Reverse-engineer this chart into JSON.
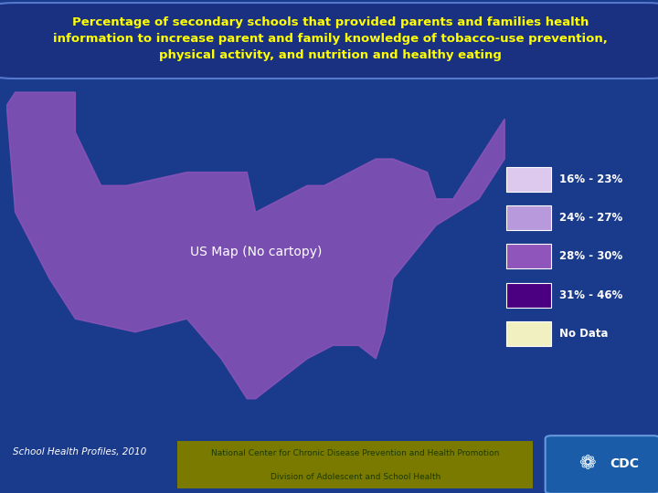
{
  "title": "Percentage of secondary schools that provided parents and families health\ninformation to increase parent and family knowledge of tobacco-use prevention,\nphysical activity, and nutrition and healthy eating",
  "title_color": "#FFFF00",
  "background_color": "#1a3a8c",
  "title_box_color": "#1a3080",
  "title_box_edge": "#5577cc",
  "legend_items": [
    {
      "label": "16% - 23%",
      "color": "#ddc8ee"
    },
    {
      "label": "24% - 27%",
      "color": "#b899dc"
    },
    {
      "label": "28% - 30%",
      "color": "#9055bb"
    },
    {
      "label": "31% - 46%",
      "color": "#4a0080"
    },
    {
      "label": "No Data",
      "color": "#f0f0c0"
    }
  ],
  "footer_left": "School Health Profiles, 2010",
  "footer_center1": "National Center for Chronic Disease Prevention and Health Promotion",
  "footer_center2": "Division of Adolescent and School Health",
  "footer_bg": "#7a7a00",
  "cdc_bg": "#1a5ca8",
  "state_colors": {
    "Alabama": "#9055bb",
    "Alaska": "#b899dc",
    "Arizona": "#b899dc",
    "Arkansas": "#4a0080",
    "California": "#b899dc",
    "Colorado": "#4a0080",
    "Connecticut": "#9055bb",
    "Delaware": "#9055bb",
    "Florida": "#b899dc",
    "Georgia": "#9055bb",
    "Hawaii": "#b899dc",
    "Idaho": "#b899dc",
    "Illinois": "#f0f0c0",
    "Indiana": "#9055bb",
    "Iowa": "#b899dc",
    "Kansas": "#b899dc",
    "Kentucky": "#4a0080",
    "Louisiana": "#4a0080",
    "Maine": "#b899dc",
    "Maryland": "#9055bb",
    "Massachusetts": "#9055bb",
    "Michigan": "#9055bb",
    "Minnesota": "#b899dc",
    "Mississippi": "#4a0080",
    "Missouri": "#9055bb",
    "Montana": "#ddc8ee",
    "Nebraska": "#b899dc",
    "Nevada": "#b899dc",
    "New Hampshire": "#9055bb",
    "New Jersey": "#9055bb",
    "New Mexico": "#b899dc",
    "New York": "#4a0080",
    "North Carolina": "#9055bb",
    "North Dakota": "#4a0080",
    "Ohio": "#9055bb",
    "Oklahoma": "#4a0080",
    "Oregon": "#ddc8ee",
    "Pennsylvania": "#9055bb",
    "Rhode Island": "#9055bb",
    "South Carolina": "#9055bb",
    "South Dakota": "#ddc8ee",
    "Tennessee": "#4a0080",
    "Texas": "#b899dc",
    "Utah": "#ddc8ee",
    "Vermont": "#ddc8ee",
    "Virginia": "#9055bb",
    "Washington": "#ddc8ee",
    "West Virginia": "#9055bb",
    "Wisconsin": "#b899dc",
    "Wyoming": "#4a0080"
  }
}
